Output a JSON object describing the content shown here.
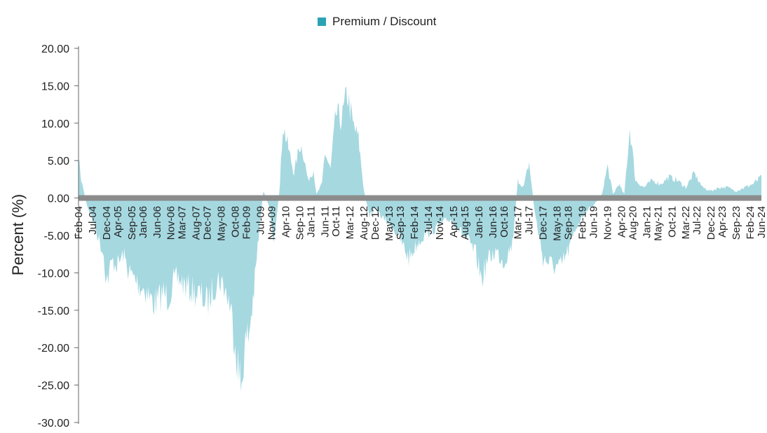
{
  "chart_data": {
    "type": "area",
    "title": "",
    "xlabel": "",
    "ylabel": "Percent (%)",
    "ylim": [
      -30,
      20
    ],
    "yticks": [
      "20.00",
      "15.00",
      "10.00",
      "5.00",
      "0.00",
      "-5.00",
      "-10.00",
      "-15.00",
      "-20.00",
      "-25.00",
      "-30.00"
    ],
    "xlim": [
      "2004-02",
      "2024-06"
    ],
    "xticks": [
      "Feb-04",
      "Jul-04",
      "Dec-04",
      "Apr-05",
      "Sep-05",
      "Jan-06",
      "Jun-06",
      "Nov-06",
      "Mar-07",
      "Aug-07",
      "Dec-07",
      "May-08",
      "Oct-08",
      "Feb-09",
      "Jul-09",
      "Nov-09",
      "Apr-10",
      "Sep-10",
      "Jan-11",
      "Jun-11",
      "Oct-11",
      "Mar-12",
      "Aug-12",
      "Dec-12",
      "May-13",
      "Sep-13",
      "Feb-14",
      "Jul-14",
      "Nov-14",
      "Apr-15",
      "Aug-15",
      "Jan-16",
      "Jun-16",
      "Oct-16",
      "Mar-17",
      "Jul-17",
      "Dec-17",
      "May-18",
      "Sep-18",
      "Feb-19",
      "Jun-19",
      "Nov-19",
      "Apr-20",
      "Aug-20",
      "Jan-21",
      "May-21",
      "Oct-21",
      "Mar-22",
      "Jul-22",
      "Dec-22",
      "Apr-23",
      "Sep-23",
      "Feb-24",
      "Jun-24"
    ],
    "grid": false,
    "legend_position": "top-center",
    "series": [
      {
        "name": "Premium / Discount",
        "color": "#2aa4b4",
        "fill_color": "#a6d8e0",
        "points": [
          [
            "2004-02",
            6.0
          ],
          [
            "2004-03",
            2.5
          ],
          [
            "2004-05",
            -1.0
          ],
          [
            "2004-07",
            -3.0
          ],
          [
            "2004-09",
            -5.5
          ],
          [
            "2004-11",
            -8.0
          ],
          [
            "2004-12",
            -12.0
          ],
          [
            "2005-02",
            -9.0
          ],
          [
            "2005-04",
            -9.5
          ],
          [
            "2005-06",
            -8.0
          ],
          [
            "2005-08",
            -10.5
          ],
          [
            "2005-10",
            -11.5
          ],
          [
            "2005-12",
            -12.5
          ],
          [
            "2006-02",
            -13.0
          ],
          [
            "2006-04",
            -14.5
          ],
          [
            "2006-06",
            -15.0
          ],
          [
            "2006-08",
            -13.5
          ],
          [
            "2006-10",
            -14.0
          ],
          [
            "2006-12",
            -12.0
          ],
          [
            "2007-02",
            -11.5
          ],
          [
            "2007-04",
            -12.5
          ],
          [
            "2007-06",
            -13.0
          ],
          [
            "2007-08",
            -13.5
          ],
          [
            "2007-10",
            -14.0
          ],
          [
            "2007-12",
            -15.0
          ],
          [
            "2008-02",
            -13.0
          ],
          [
            "2008-04",
            -11.5
          ],
          [
            "2008-06",
            -12.5
          ],
          [
            "2008-08",
            -15.0
          ],
          [
            "2008-10",
            -20.0
          ],
          [
            "2008-12",
            -27.5
          ],
          [
            "2009-01",
            -22.0
          ],
          [
            "2009-03",
            -19.0
          ],
          [
            "2009-05",
            -12.0
          ],
          [
            "2009-06",
            -7.0
          ],
          [
            "2009-08",
            1.0
          ],
          [
            "2009-10",
            -1.0
          ],
          [
            "2009-12",
            -6.5
          ],
          [
            "2010-02",
            2.0
          ],
          [
            "2010-03",
            10.5
          ],
          [
            "2010-05",
            7.0
          ],
          [
            "2010-07",
            3.5
          ],
          [
            "2010-09",
            7.5
          ],
          [
            "2010-10",
            7.0
          ],
          [
            "2010-12",
            2.5
          ],
          [
            "2011-02",
            4.0
          ],
          [
            "2011-03",
            0.5
          ],
          [
            "2011-05",
            2.0
          ],
          [
            "2011-06",
            6.5
          ],
          [
            "2011-08",
            4.0
          ],
          [
            "2011-10",
            12.0
          ],
          [
            "2011-12",
            11.0
          ],
          [
            "2012-02",
            15.0
          ],
          [
            "2012-04",
            10.5
          ],
          [
            "2012-06",
            8.5
          ],
          [
            "2012-08",
            1.0
          ],
          [
            "2012-10",
            -2.5
          ],
          [
            "2012-12",
            -1.5
          ],
          [
            "2013-03",
            -3.0
          ],
          [
            "2013-06",
            -4.0
          ],
          [
            "2013-09",
            -6.0
          ],
          [
            "2013-12",
            -8.5
          ],
          [
            "2014-03",
            -6.5
          ],
          [
            "2014-06",
            -5.0
          ],
          [
            "2014-09",
            -4.5
          ],
          [
            "2014-12",
            -3.5
          ],
          [
            "2015-03",
            -3.0
          ],
          [
            "2015-06",
            -4.5
          ],
          [
            "2015-09",
            -6.0
          ],
          [
            "2015-12",
            -8.0
          ],
          [
            "2016-02",
            -11.5
          ],
          [
            "2016-04",
            -9.0
          ],
          [
            "2016-07",
            -7.5
          ],
          [
            "2016-10",
            -9.0
          ],
          [
            "2017-01",
            -6.5
          ],
          [
            "2017-03",
            2.5
          ],
          [
            "2017-05",
            1.5
          ],
          [
            "2017-07",
            5.0
          ],
          [
            "2017-09",
            -2.0
          ],
          [
            "2017-12",
            -8.5
          ],
          [
            "2018-03",
            -9.5
          ],
          [
            "2018-06",
            -10.0
          ],
          [
            "2018-09",
            -7.5
          ],
          [
            "2018-12",
            -4.0
          ],
          [
            "2019-03",
            -2.0
          ],
          [
            "2019-06",
            -1.0
          ],
          [
            "2019-09",
            0.5
          ],
          [
            "2019-11",
            4.5
          ],
          [
            "2020-01",
            0.5
          ],
          [
            "2020-03",
            2.0
          ],
          [
            "2020-05",
            0.5
          ],
          [
            "2020-07",
            10.0
          ],
          [
            "2020-09",
            2.5
          ],
          [
            "2020-12",
            1.5
          ],
          [
            "2021-03",
            2.5
          ],
          [
            "2021-06",
            2.0
          ],
          [
            "2021-09",
            3.0
          ],
          [
            "2021-12",
            2.5
          ],
          [
            "2022-03",
            1.5
          ],
          [
            "2022-06",
            3.5
          ],
          [
            "2022-09",
            1.5
          ],
          [
            "2022-12",
            1.0
          ],
          [
            "2023-03",
            1.5
          ],
          [
            "2023-06",
            1.5
          ],
          [
            "2023-09",
            1.0
          ],
          [
            "2023-12",
            1.5
          ],
          [
            "2024-03",
            2.0
          ],
          [
            "2024-06",
            3.0
          ]
        ]
      }
    ]
  }
}
